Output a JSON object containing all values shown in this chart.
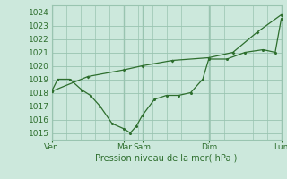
{
  "background_color": "#cce8dc",
  "grid_color": "#99c4b0",
  "line_color": "#2d6e2d",
  "text_color": "#2d6e2d",
  "xlabel": "Pression niveau de la mer( hPa )",
  "ylim": [
    1014.5,
    1024.5
  ],
  "yticks": [
    1015,
    1016,
    1017,
    1018,
    1019,
    1020,
    1021,
    1022,
    1023,
    1024
  ],
  "xtick_labels": [
    "Ven",
    "Mar",
    "Sam",
    "Dim",
    "Lun"
  ],
  "xtick_positions": [
    0,
    6,
    7.5,
    13,
    19
  ],
  "vline_positions": [
    0,
    6,
    7.5,
    13,
    19
  ],
  "line1_x": [
    0,
    0.5,
    1.5,
    2.5,
    3.2,
    4.0,
    5.0,
    6.0,
    6.5,
    7.0,
    7.5,
    8.5,
    9.5,
    10.5,
    11.5,
    12.5,
    13.0,
    14.5,
    16.0,
    17.5,
    18.5,
    19.0
  ],
  "line1_y": [
    1018.1,
    1019.0,
    1019.0,
    1018.2,
    1017.8,
    1017.0,
    1015.7,
    1015.3,
    1015.0,
    1015.5,
    1016.3,
    1017.5,
    1017.8,
    1017.8,
    1018.0,
    1019.0,
    1020.5,
    1020.5,
    1021.0,
    1021.2,
    1021.0,
    1023.5
  ],
  "line2_x": [
    0,
    3,
    6,
    7.5,
    10,
    13,
    15,
    17,
    19
  ],
  "line2_y": [
    1018.1,
    1019.2,
    1019.7,
    1020.0,
    1020.4,
    1020.6,
    1021.0,
    1022.5,
    1023.8
  ]
}
